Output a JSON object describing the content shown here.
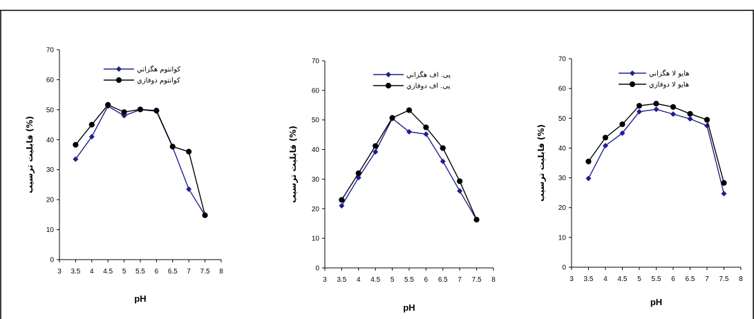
{
  "colors": {
    "series_1": "#1f1f8f",
    "series_2": "#000000"
  },
  "chart_data": [
    {
      "type": "line",
      "xlabel": "pH",
      "ylabel": "قابلیت ترسیب (%)",
      "xlim": [
        3,
        8
      ],
      "ylim": [
        0,
        70
      ],
      "xticks": [
        "3",
        "3.5",
        "4",
        "4.5",
        "5",
        "5.5",
        "6",
        "6.5",
        "7",
        "7.5",
        "8"
      ],
      "yticks": [
        "0",
        "10",
        "20",
        "30",
        "40",
        "50",
        "60",
        "70"
      ],
      "legend_position": "top-right",
      "grid": false,
      "series": [
        {
          "name": "کوانتوم هگزاني",
          "marker": "diamond",
          "color": "#1f1f8f",
          "x": [
            3.5,
            4,
            4.5,
            5,
            5.5,
            6,
            6.5,
            7,
            7.5
          ],
          "y": [
            33.5,
            41,
            51.2,
            48,
            50,
            49.5,
            37.5,
            23.5,
            14.8
          ]
        },
        {
          "name": "کوانتوم دوفازي",
          "marker": "circle",
          "color": "#000000",
          "x": [
            3.5,
            4,
            4.5,
            5,
            5.5,
            6,
            6.5,
            7,
            7.5
          ],
          "y": [
            38.3,
            45,
            51.6,
            49.2,
            50.1,
            49.7,
            37.7,
            36,
            14.8
          ]
        }
      ]
    },
    {
      "type": "line",
      "xlabel": "pH",
      "ylabel": "قابلیت ترسیب (%)",
      "xlim": [
        3,
        8
      ],
      "ylim": [
        0,
        70
      ],
      "xticks": [
        "3",
        "3.5",
        "4",
        "4.5",
        "5",
        "5.5",
        "6",
        "6.5",
        "7",
        "7.5",
        "8"
      ],
      "yticks": [
        "0",
        "10",
        "20",
        "30",
        "40",
        "50",
        "60",
        "70"
      ],
      "legend_position": "top-right",
      "grid": false,
      "series": [
        {
          "name": "پی. اف هگزاني",
          "marker": "diamond",
          "color": "#1f1f8f",
          "x": [
            3.5,
            4,
            4.5,
            5,
            5.5,
            6,
            6.5,
            7,
            7.5
          ],
          "y": [
            21,
            30.5,
            39.2,
            50.5,
            46,
            45.2,
            36,
            26,
            16.3
          ]
        },
        {
          "name": "پی. اف دوفازي",
          "marker": "circle",
          "color": "#000000",
          "x": [
            3.5,
            4,
            4.5,
            5,
            5.5,
            6,
            6.5,
            7,
            7.5
          ],
          "y": [
            23,
            32,
            41.2,
            50.7,
            53.3,
            47.5,
            40.5,
            29.3,
            16.3
          ]
        }
      ]
    },
    {
      "type": "line",
      "xlabel": "pH",
      "ylabel": "قابلیت ترسیب (%)",
      "xlim": [
        3,
        8
      ],
      "ylim": [
        0,
        70
      ],
      "xticks": [
        "3",
        "3.5",
        "4",
        "4.5",
        "5",
        "5.5",
        "6",
        "6.5",
        "7",
        "7.5",
        "8"
      ],
      "yticks": [
        "0",
        "10",
        "20",
        "30",
        "40",
        "50",
        "60",
        "70"
      ],
      "legend_position": "top-right",
      "grid": false,
      "series": [
        {
          "name": "هايو لا هگزاني",
          "marker": "diamond",
          "color": "#1f1f8f",
          "x": [
            3.5,
            4,
            4.5,
            5,
            5.5,
            6,
            6.5,
            7,
            7.5
          ],
          "y": [
            29.8,
            40.8,
            45,
            52.2,
            53,
            51.4,
            49.8,
            47.5,
            24.7
          ]
        },
        {
          "name": "هايو لا دوفازي",
          "marker": "circle",
          "color": "#000000",
          "x": [
            3.5,
            4,
            4.5,
            5,
            5.5,
            6,
            6.5,
            7,
            7.5
          ],
          "y": [
            35.5,
            43.5,
            48,
            54.2,
            54.9,
            53.8,
            51.5,
            49.5,
            28.3
          ]
        }
      ]
    }
  ]
}
